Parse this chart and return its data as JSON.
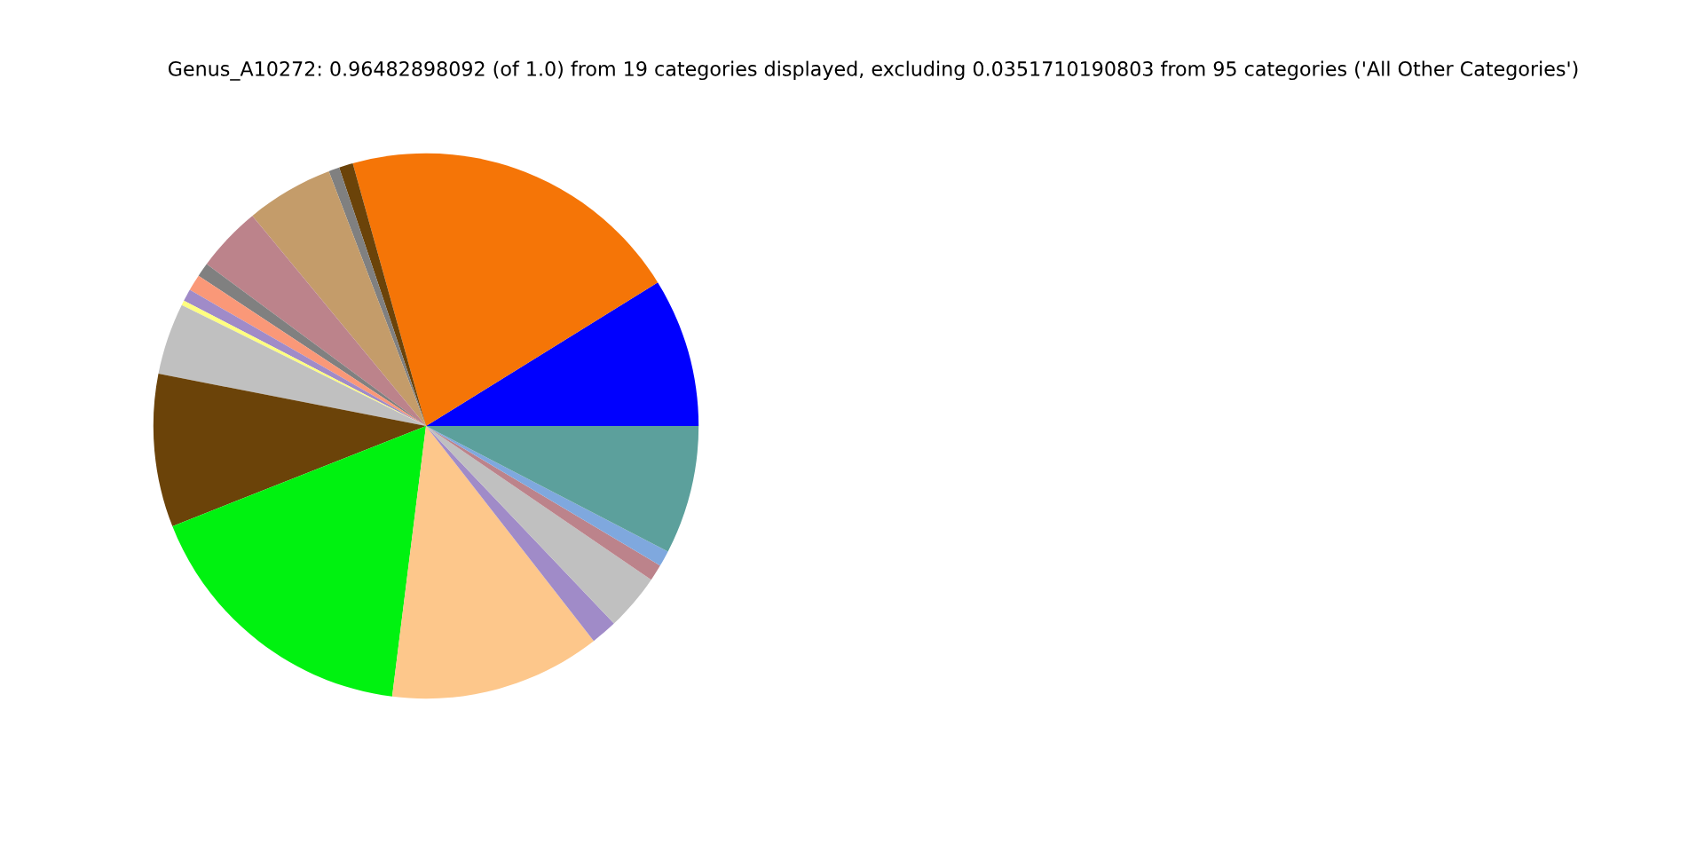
{
  "chart_data": {
    "type": "pie",
    "title": "Genus_A10272: 0.96482898092 (of 1.0) from 19 categories displayed, excluding 0.0351710190803 from 95 categories ('All Other Categories')",
    "categories": [
      null,
      null,
      null,
      null,
      null,
      null,
      null,
      null,
      null,
      null,
      null,
      null,
      null,
      null,
      null,
      null,
      null,
      null,
      null
    ],
    "values": [
      8.83,
      20.5,
      0.83,
      0.64,
      5.19,
      3.89,
      0.83,
      0.97,
      0.72,
      0.28,
      4.25,
      9.06,
      17.03,
      12.53,
      1.56,
      3.36,
      0.97,
      0.94,
      7.62
    ],
    "colors": [
      "#0000ff",
      "#f57507",
      "#6b4309",
      "#808080",
      "#c49c6a",
      "#bc838b",
      "#808080",
      "#fa9878",
      "#a08bc8",
      "#ffff80",
      "#c0c0c0",
      "#6b4309",
      "#00f210",
      "#fdc78b",
      "#a08bc8",
      "#c0c0c0",
      "#bc838b",
      "#7fa8de",
      "#5ca09c"
    ]
  }
}
